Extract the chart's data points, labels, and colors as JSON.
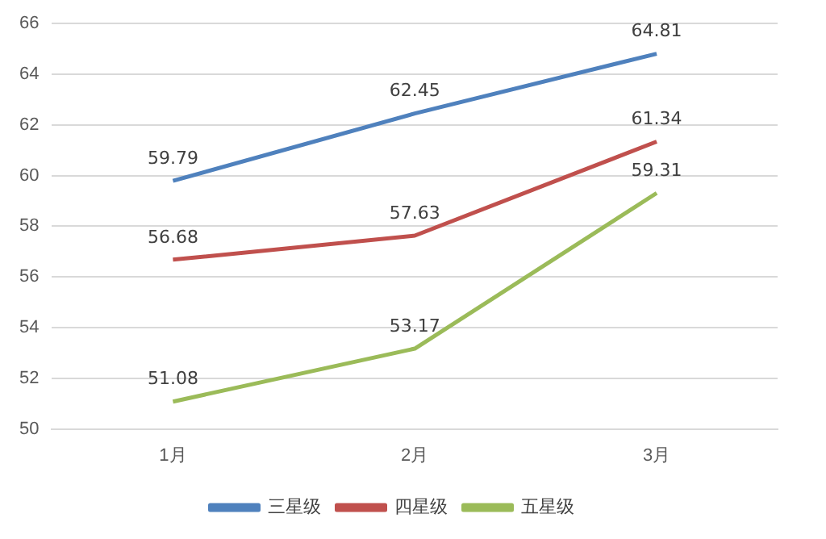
{
  "chart_data": {
    "type": "line",
    "categories": [
      "1月",
      "2月",
      "3月"
    ],
    "series": [
      {
        "name": "三星级",
        "color": "#4f81bd",
        "values": [
          59.79,
          62.45,
          64.81
        ]
      },
      {
        "name": "四星级",
        "color": "#c0504d",
        "values": [
          56.68,
          57.63,
          61.34
        ]
      },
      {
        "name": "五星级",
        "color": "#9bbb59",
        "values": [
          51.08,
          53.17,
          59.31
        ]
      }
    ],
    "ylim": [
      50,
      66
    ],
    "yticks": [
      50,
      52,
      54,
      56,
      58,
      60,
      62,
      64,
      66
    ],
    "grid": "y",
    "legend": "bottom",
    "data_labels": true,
    "marker": "none",
    "line_style": "solid"
  }
}
